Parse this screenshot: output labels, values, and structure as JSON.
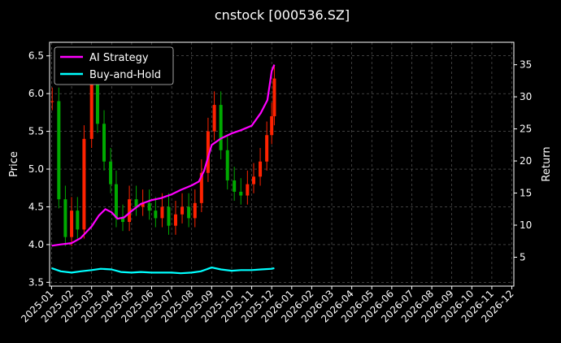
{
  "chart_data": {
    "type": "line",
    "title": "cnstock [000536.SZ]",
    "ylabel_left": "Price",
    "ylabel_right": "Return",
    "background": "#000000",
    "grid": true,
    "legend_placement": "top-left",
    "x_ticks": [
      "2025-01",
      "2025-02",
      "2025-03",
      "2025-04",
      "2025-05",
      "2025-06",
      "2025-07",
      "2025-08",
      "2025-09",
      "2025-10",
      "2025-11",
      "2025-12",
      "2026-01",
      "2026-02",
      "2026-03",
      "2026-04",
      "2026-05",
      "2026-06",
      "2026-07",
      "2026-08",
      "2026-09",
      "2026-10",
      "2026-11",
      "2026-12"
    ],
    "y_left": {
      "lim": [
        3.45,
        6.68
      ],
      "ticks": [
        "3.5",
        "4.0",
        "4.5",
        "5.0",
        "5.5",
        "6.0",
        "6.5"
      ]
    },
    "y_right": {
      "lim": [
        0.5,
        38.5
      ],
      "ticks": [
        "5",
        "10",
        "15",
        "20",
        "25",
        "30",
        "35"
      ]
    },
    "price_candles": {
      "up_color": "#ff2200",
      "down_color": "#00aa00",
      "x": [
        "2025-01-02",
        "2025-01-12",
        "2025-01-22",
        "2025-02-01",
        "2025-02-10",
        "2025-02-20",
        "2025-03-01",
        "2025-03-10",
        "2025-03-20",
        "2025-03-30",
        "2025-04-08",
        "2025-04-18",
        "2025-04-28",
        "2025-05-08",
        "2025-05-18",
        "2025-05-28",
        "2025-06-07",
        "2025-06-17",
        "2025-06-27",
        "2025-07-07",
        "2025-07-17",
        "2025-07-27",
        "2025-08-06",
        "2025-08-16",
        "2025-08-26",
        "2025-09-05",
        "2025-09-15",
        "2025-09-25",
        "2025-10-05",
        "2025-10-15",
        "2025-10-25",
        "2025-11-04",
        "2025-11-14",
        "2025-11-24",
        "2025-12-01",
        "2025-12-05"
      ],
      "close": [
        5.9,
        4.6,
        4.1,
        4.45,
        4.2,
        5.4,
        6.2,
        5.6,
        5.1,
        4.8,
        4.35,
        4.3,
        4.6,
        4.5,
        4.55,
        4.45,
        4.35,
        4.5,
        4.25,
        4.4,
        4.5,
        4.35,
        4.55,
        4.95,
        5.5,
        5.85,
        5.25,
        4.85,
        4.7,
        4.65,
        4.8,
        4.9,
        5.1,
        5.45,
        5.7,
        6.2
      ]
    },
    "series": [
      {
        "name": "AI Strategy",
        "color": "#ff00ff",
        "x": [
          "2025-01-01",
          "2025-01-15",
          "2025-02-01",
          "2025-02-15",
          "2025-03-01",
          "2025-03-12",
          "2025-03-22",
          "2025-04-01",
          "2025-04-10",
          "2025-04-20",
          "2025-05-01",
          "2025-05-15",
          "2025-06-01",
          "2025-06-15",
          "2025-07-01",
          "2025-07-15",
          "2025-08-01",
          "2025-08-12",
          "2025-08-20",
          "2025-09-01",
          "2025-09-15",
          "2025-10-01",
          "2025-10-15",
          "2025-11-01",
          "2025-11-15",
          "2025-11-25",
          "2025-12-01",
          "2025-12-05"
        ],
        "values": [
          6.8,
          7.0,
          7.2,
          8.0,
          9.8,
          11.5,
          12.5,
          12.0,
          11.0,
          11.2,
          12.2,
          13.3,
          13.9,
          14.2,
          14.8,
          15.5,
          16.2,
          16.8,
          18.5,
          22.5,
          23.5,
          24.3,
          24.8,
          25.5,
          27.5,
          29.5,
          34.0,
          35.0
        ]
      },
      {
        "name": "Buy-and-Hold",
        "color": "#00ffff",
        "x": [
          "2025-01-01",
          "2025-01-15",
          "2025-02-01",
          "2025-02-15",
          "2025-03-01",
          "2025-03-15",
          "2025-04-01",
          "2025-04-15",
          "2025-05-01",
          "2025-05-15",
          "2025-06-01",
          "2025-06-15",
          "2025-07-01",
          "2025-07-15",
          "2025-08-01",
          "2025-08-15",
          "2025-09-01",
          "2025-09-15",
          "2025-10-01",
          "2025-10-15",
          "2025-11-01",
          "2025-11-15",
          "2025-12-01",
          "2025-12-05"
        ],
        "values": [
          3.3,
          2.8,
          2.6,
          2.8,
          3.0,
          3.2,
          3.1,
          2.7,
          2.6,
          2.7,
          2.6,
          2.6,
          2.6,
          2.5,
          2.6,
          2.8,
          3.4,
          3.1,
          2.9,
          3.0,
          3.0,
          3.1,
          3.2,
          3.3
        ]
      }
    ]
  }
}
